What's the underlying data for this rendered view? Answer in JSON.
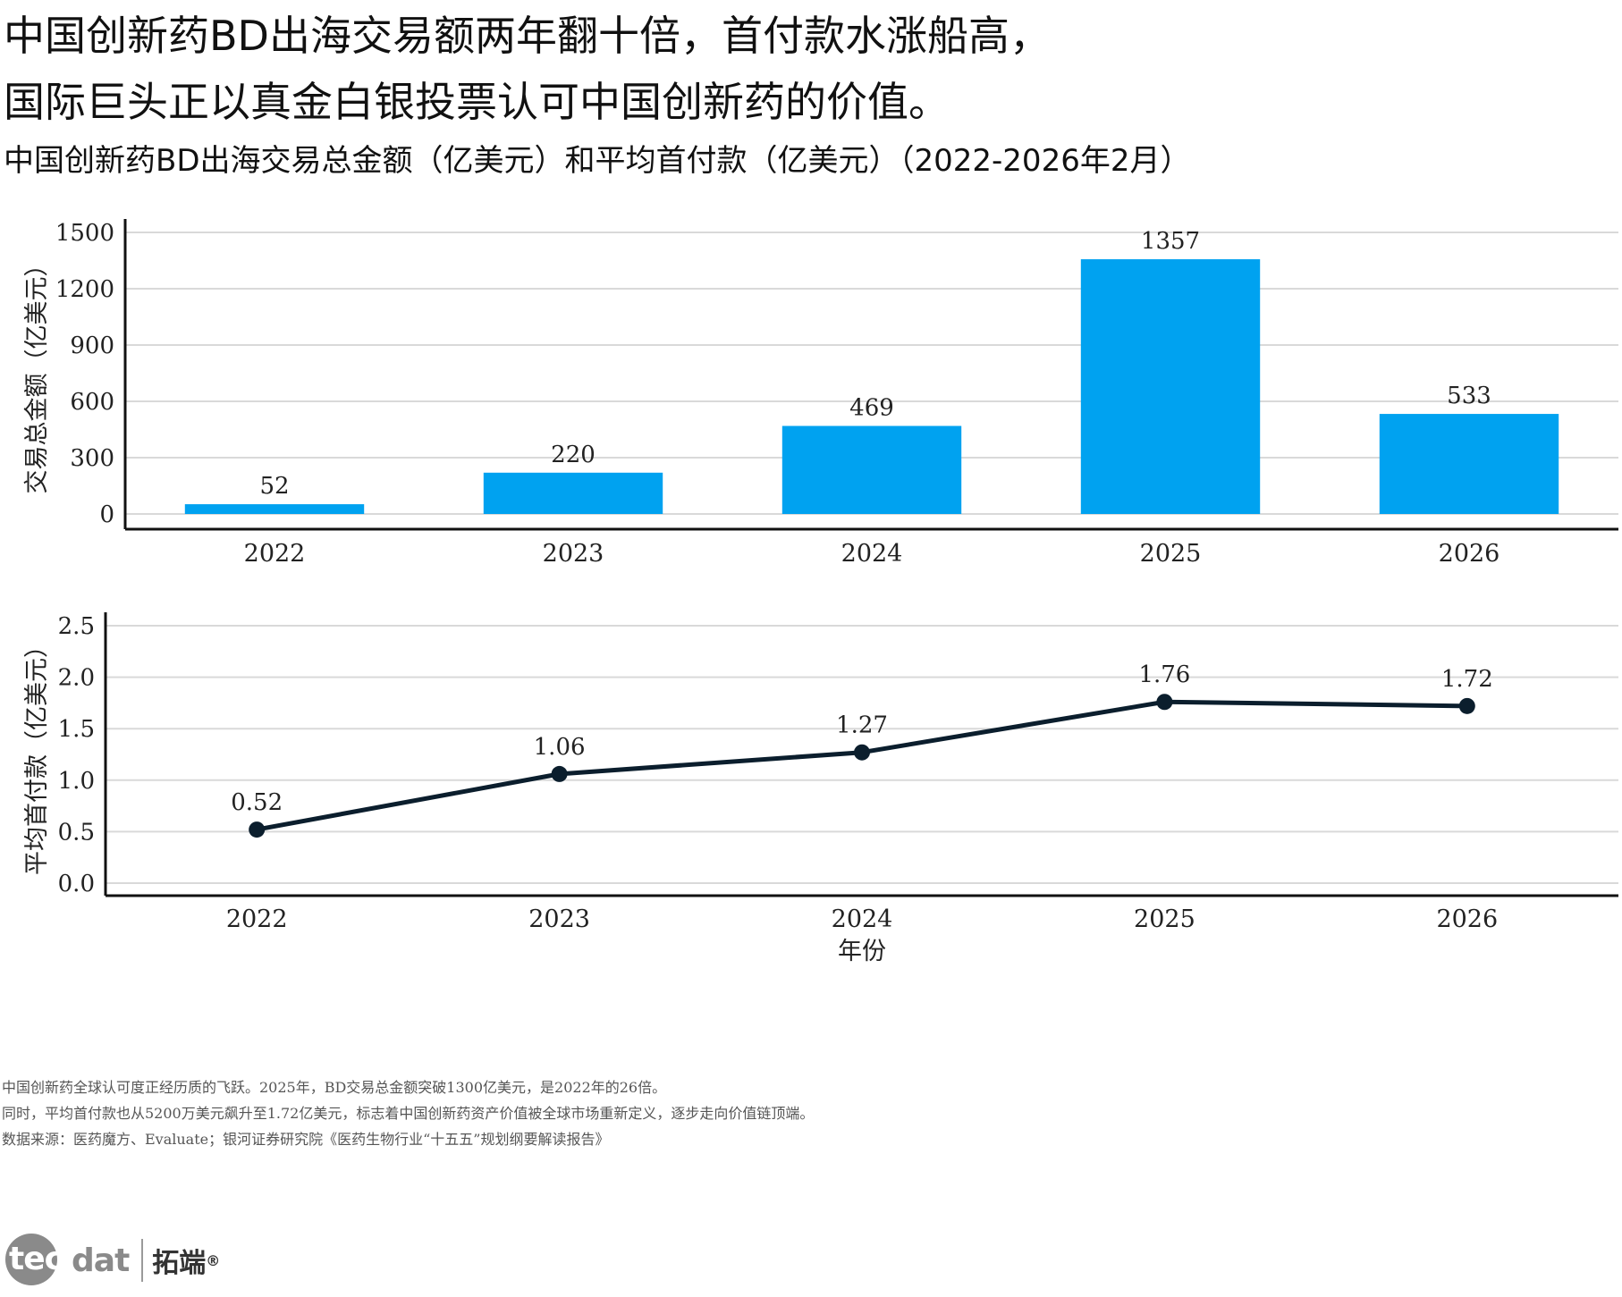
{
  "headline": {
    "line1": "中国创新药BD出海交易额两年翻十倍，首付款水涨船高，",
    "line2": "国际巨头正以真金白银投票认可中国创新药的价值。"
  },
  "subtitle": "中国创新药BD出海交易总金额（亿美元）和平均首付款（亿美元）（2022-2026年2月）",
  "chart_data": [
    {
      "type": "bar",
      "categories": [
        "2022",
        "2023",
        "2024",
        "2025",
        "2026"
      ],
      "values": [
        52,
        220,
        469,
        1357,
        533
      ],
      "value_labels": [
        "52",
        "220",
        "469",
        "1357",
        "533"
      ],
      "ylabel": "交易总金额（亿美元）",
      "ylim": [
        0,
        1500
      ],
      "yticks": [
        0,
        300,
        600,
        900,
        1200,
        1500
      ],
      "ytick_labels": [
        "0",
        "300",
        "600",
        "900",
        "1200",
        "1500"
      ],
      "bar_color": "#00a2f0",
      "grid": true
    },
    {
      "type": "line",
      "categories": [
        "2022",
        "2023",
        "2024",
        "2025",
        "2026"
      ],
      "values": [
        0.52,
        1.06,
        1.27,
        1.76,
        1.72
      ],
      "value_labels": [
        "0.52",
        "1.06",
        "1.27",
        "1.76",
        "1.72"
      ],
      "xlabel": "年份",
      "ylabel": "平均首付款（亿美元）",
      "ylim": [
        0,
        2.5
      ],
      "yticks": [
        0,
        0.5,
        1.0,
        1.5,
        2.0,
        2.5
      ],
      "ytick_labels": [
        "0.0",
        "0.5",
        "1.0",
        "1.5",
        "2.0",
        "2.5"
      ],
      "line_color": "#0b1e2d",
      "grid": true
    }
  ],
  "notes": [
    "中国创新药全球认可度正经历质的飞跃。2025年，BD交易总金额突破1300亿美元，是2022年的26倍。",
    "同时，平均首付款也从5200万美元飙升至1.72亿美元，标志着中国创新药资产价值被全球市场重新定义，逐步走向价值链顶端。",
    "数据来源：医药魔方、Evaluate；银河证券研究院《医药生物行业“十五五”规划纲要解读报告》"
  ],
  "logo": {
    "word_a": "tec",
    "word_b": "dat",
    "cn": "拓端",
    "reg": "®"
  }
}
